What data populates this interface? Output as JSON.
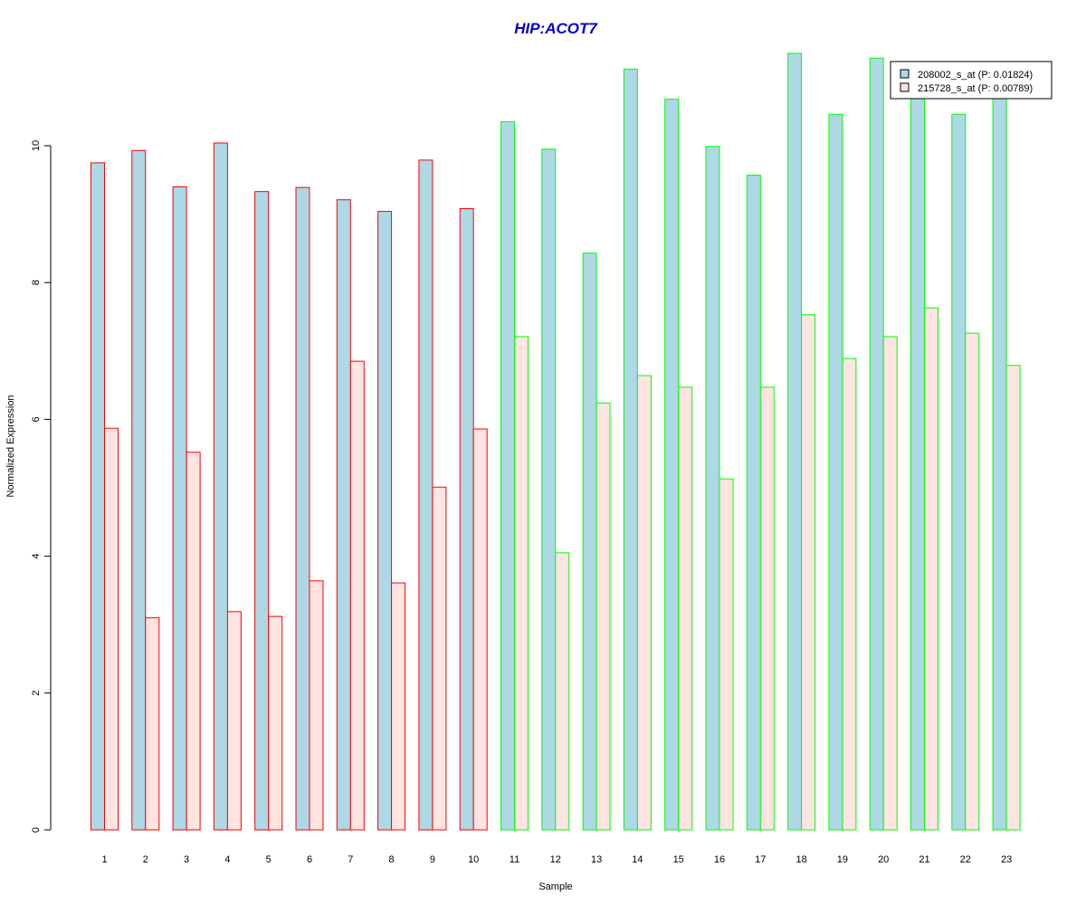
{
  "chart_data": {
    "type": "bar",
    "title": "HIP:ACOT7",
    "xlabel": "Sample",
    "ylabel": "Normalized Expression",
    "categories": [
      "1",
      "2",
      "3",
      "4",
      "5",
      "6",
      "7",
      "8",
      "9",
      "10",
      "11",
      "12",
      "13",
      "14",
      "15",
      "16",
      "17",
      "18",
      "19",
      "20",
      "21",
      "22",
      "23"
    ],
    "ylim": [
      0,
      11.5
    ],
    "yticks": [
      0,
      2,
      4,
      6,
      8,
      10
    ],
    "grid": false,
    "legend_position": "top-right",
    "series": [
      {
        "name": "208002_s_at (P: 0.01824)",
        "fill": "#add8e6",
        "values": [
          9.75,
          9.93,
          9.4,
          10.04,
          9.33,
          9.39,
          9.21,
          9.04,
          9.79,
          9.08,
          10.35,
          9.95,
          8.43,
          11.12,
          10.68,
          9.99,
          9.57,
          11.35,
          10.46,
          11.28,
          10.8,
          10.46,
          10.8
        ]
      },
      {
        "name": "215728_s_at (P: 0.00789)",
        "fill": "#ffe4e1",
        "values": [
          5.87,
          3.1,
          5.52,
          3.19,
          3.12,
          3.64,
          6.85,
          3.61,
          5.01,
          5.86,
          7.21,
          4.05,
          6.24,
          6.64,
          6.47,
          5.13,
          6.47,
          7.53,
          6.89,
          7.21,
          7.63,
          7.26,
          6.79
        ]
      }
    ],
    "group_border_colors": [
      "#ff0000",
      "#ff0000",
      "#ff0000",
      "#ff0000",
      "#ff0000",
      "#ff0000",
      "#ff0000",
      "#ff0000",
      "#ff0000",
      "#ff0000",
      "#00ff00",
      "#00ff00",
      "#00ff00",
      "#00ff00",
      "#00ff00",
      "#00ff00",
      "#00ff00",
      "#00ff00",
      "#00ff00",
      "#00ff00",
      "#00ff00",
      "#00ff00",
      "#00ff00"
    ],
    "title_color": "#0000cc"
  }
}
